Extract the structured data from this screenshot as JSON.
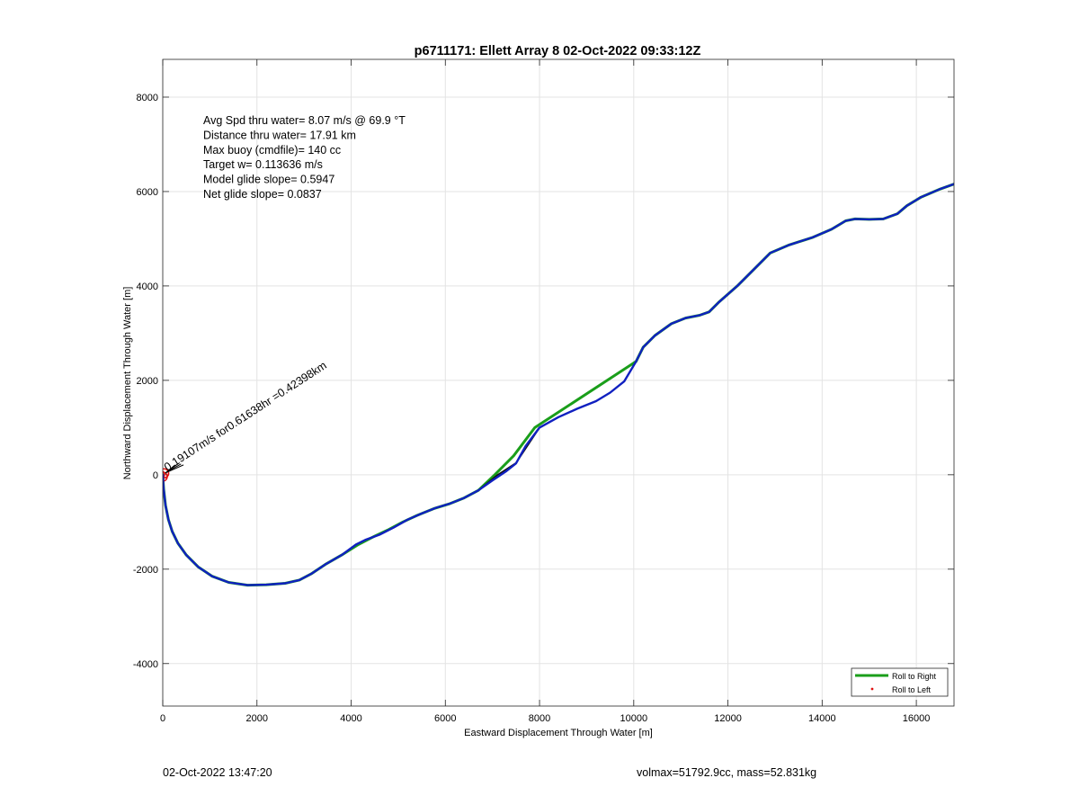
{
  "figure": {
    "title": "p6711171: Ellett Array 8 02-Oct-2022 09:33:12Z",
    "footer_left": "02-Oct-2022 13:47:20",
    "footer_right": "volmax=51792.9cc, mass=52.831kg"
  },
  "colors": {
    "roll_right": "#1a9e1a",
    "roll_left": "#e01010",
    "track": "#1020c0",
    "grid": "#e3e3e3"
  },
  "chart_data": {
    "type": "line",
    "title": "p6711171: Ellett Array 8 02-Oct-2022 09:33:12Z",
    "xlabel": "Eastward Displacement Through Water [m]",
    "ylabel": "Northward Displacement Through Water [m]",
    "xlim": [
      0,
      16800
    ],
    "ylim": [
      -4900,
      8800
    ],
    "xticks": [
      0,
      2000,
      4000,
      6000,
      8000,
      10000,
      12000,
      14000,
      16000
    ],
    "yticks": [
      -4000,
      -2000,
      0,
      2000,
      4000,
      6000,
      8000
    ],
    "grid": true,
    "legend_position": "bottom-right",
    "annotations": [
      "Avg Spd thru water=  8.07 m/s @  69.9 °T",
      "Distance thru water= 17.91 km",
      "Max buoy (cmdfile)= 140 cc",
      "Target w= 0.113636 m/s",
      "Model glide slope= 0.5947",
      "Net glide slope= 0.0837"
    ],
    "vector_label": "0.19107m/s for0.61638hr =0.42398km",
    "series": [
      {
        "name": "Roll to Right",
        "style": "line",
        "x": [
          0,
          20,
          60,
          120,
          200,
          320,
          500,
          750,
          1050,
          1400,
          1800,
          2200,
          2600,
          2900,
          3150,
          3450,
          3800,
          4150,
          4500,
          4800,
          5100,
          5400,
          5750,
          6100,
          6400,
          6700,
          7050,
          7450,
          7900,
          10050,
          10200,
          10450,
          10800,
          11100,
          11400,
          11600,
          11800,
          12200,
          12600,
          12900,
          13300,
          13800,
          14200,
          14500,
          14700,
          15000,
          15300,
          15600,
          15800,
          16100,
          16500,
          16800
        ],
        "y": [
          0,
          -300,
          -650,
          -950,
          -1200,
          -1450,
          -1700,
          -1950,
          -2150,
          -2280,
          -2340,
          -2330,
          -2300,
          -2230,
          -2100,
          -1900,
          -1700,
          -1480,
          -1300,
          -1160,
          -1000,
          -860,
          -720,
          -610,
          -490,
          -330,
          0,
          400,
          1000,
          2400,
          2700,
          2950,
          3200,
          3320,
          3380,
          3450,
          3650,
          4000,
          4400,
          4700,
          4870,
          5030,
          5200,
          5380,
          5420,
          5410,
          5420,
          5530,
          5700,
          5880,
          6050,
          6160
        ]
      },
      {
        "name": "Roll to Left",
        "style": "points",
        "x": [
          -60,
          0,
          30
        ],
        "y": [
          0,
          -40,
          30
        ]
      },
      {
        "name": "",
        "style": "line-black",
        "x": [
          6700,
          7100,
          7500,
          7700,
          8000
        ],
        "y": [
          -330,
          -10,
          250,
          550,
          1000
        ]
      },
      {
        "name": "",
        "style": "line-blue",
        "x": [
          0,
          20,
          60,
          120,
          200,
          320,
          500,
          750,
          1050,
          1400,
          1800,
          2200,
          2600,
          2900,
          3150,
          3450,
          3800,
          4100,
          4300,
          4600,
          4900,
          5200,
          5500,
          5800,
          6100,
          6400,
          6700,
          7000,
          7300,
          7500,
          7700,
          8000,
          8400,
          8800,
          9200,
          9500,
          9800,
          10050,
          10200,
          10450,
          10800,
          11100,
          11400,
          11600,
          11800,
          12200,
          12600,
          12900,
          13300,
          13800,
          14200,
          14500,
          14700,
          15000,
          15300,
          15600,
          15800,
          16100,
          16500,
          16800
        ],
        "y": [
          0,
          -300,
          -650,
          -950,
          -1200,
          -1450,
          -1700,
          -1950,
          -2150,
          -2280,
          -2340,
          -2330,
          -2300,
          -2230,
          -2100,
          -1900,
          -1700,
          -1480,
          -1380,
          -1270,
          -1120,
          -950,
          -820,
          -700,
          -610,
          -490,
          -330,
          -120,
          80,
          240,
          600,
          1000,
          1220,
          1400,
          1560,
          1740,
          1980,
          2400,
          2700,
          2950,
          3200,
          3320,
          3380,
          3450,
          3650,
          4000,
          4400,
          4700,
          4870,
          5030,
          5200,
          5380,
          5420,
          5410,
          5420,
          5530,
          5700,
          5880,
          6050,
          6160
        ]
      }
    ]
  }
}
